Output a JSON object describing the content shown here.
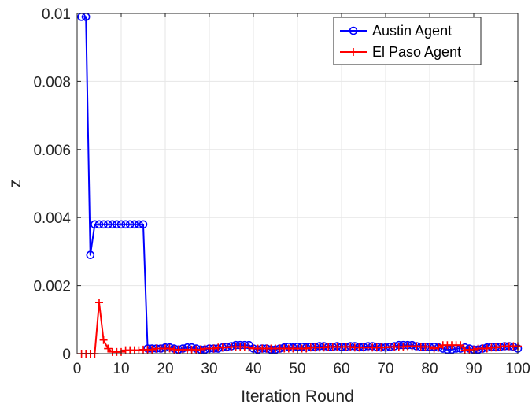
{
  "chart_data": {
    "type": "line",
    "title": "",
    "xlabel": "Iteration Round",
    "ylabel": "z",
    "xlim": [
      0,
      100
    ],
    "ylim": [
      0,
      0.01
    ],
    "x_ticks": [
      0,
      10,
      20,
      30,
      40,
      50,
      60,
      70,
      80,
      90,
      100
    ],
    "y_ticks": [
      0,
      0.002,
      0.004,
      0.006,
      0.008,
      0.01
    ],
    "x_tick_labels": [
      "0",
      "10",
      "20",
      "30",
      "40",
      "50",
      "60",
      "70",
      "80",
      "90",
      "100"
    ],
    "y_tick_labels": [
      "0",
      "0.002",
      "0.004",
      "0.006",
      "0.008",
      "0.01"
    ],
    "grid": true,
    "legend_position": "top-right",
    "x": [
      1,
      2,
      3,
      4,
      5,
      6,
      7,
      8,
      9,
      10,
      11,
      12,
      13,
      14,
      15,
      16,
      17,
      18,
      19,
      20,
      21,
      22,
      23,
      24,
      25,
      26,
      27,
      28,
      29,
      30,
      31,
      32,
      33,
      34,
      35,
      36,
      37,
      38,
      39,
      40,
      41,
      42,
      43,
      44,
      45,
      46,
      47,
      48,
      49,
      50,
      51,
      52,
      53,
      54,
      55,
      56,
      57,
      58,
      59,
      60,
      61,
      62,
      63,
      64,
      65,
      66,
      67,
      68,
      69,
      70,
      71,
      72,
      73,
      74,
      75,
      76,
      77,
      78,
      79,
      80,
      81,
      82,
      83,
      84,
      85,
      86,
      87,
      88,
      89,
      90,
      91,
      92,
      93,
      94,
      95,
      96,
      97,
      98,
      99,
      100
    ],
    "series": [
      {
        "name": "Austin Agent",
        "color": "#0000ff",
        "marker": "circle",
        "values": [
          0.0099,
          0.0099,
          0.0029,
          0.0038,
          0.0038,
          0.0038,
          0.0038,
          0.0038,
          0.0038,
          0.0038,
          0.0038,
          0.0038,
          0.0038,
          0.0038,
          0.0038,
          0.00015,
          0.00015,
          0.00015,
          0.00015,
          0.00018,
          0.00018,
          0.00015,
          0.00012,
          0.00015,
          0.00018,
          0.00018,
          0.00015,
          0.00012,
          0.00012,
          0.00015,
          0.00015,
          0.00015,
          0.00018,
          0.0002,
          0.00022,
          0.00025,
          0.00025,
          0.00025,
          0.00025,
          0.00015,
          0.00012,
          0.00015,
          0.00015,
          0.00012,
          0.00012,
          0.00015,
          0.00018,
          0.0002,
          0.00018,
          0.0002,
          0.0002,
          0.00018,
          0.0002,
          0.0002,
          0.00022,
          0.00022,
          0.0002,
          0.0002,
          0.00022,
          0.0002,
          0.0002,
          0.00022,
          0.00022,
          0.0002,
          0.0002,
          0.00022,
          0.00022,
          0.0002,
          0.00018,
          0.00018,
          0.0002,
          0.00022,
          0.00025,
          0.00025,
          0.00025,
          0.00025,
          0.00022,
          0.0002,
          0.0002,
          0.0002,
          0.0002,
          0.00018,
          0.00015,
          0.00012,
          0.00012,
          0.00015,
          0.00015,
          0.00018,
          0.00015,
          0.00012,
          0.00012,
          0.00015,
          0.00018,
          0.0002,
          0.0002,
          0.0002,
          0.00022,
          0.00022,
          0.0002,
          0.00015
        ]
      },
      {
        "name": "El Paso Agent",
        "color": "#ff0000",
        "marker": "plus",
        "values": [
          0,
          0,
          0,
          0,
          0.0015,
          0.0004,
          0.00015,
          5e-05,
          5e-05,
          5e-05,
          0.0001,
          0.0001,
          0.0001,
          0.0001,
          0.00012,
          0.00012,
          0.00012,
          0.00015,
          0.00015,
          0.00015,
          0.00015,
          0.00012,
          0.00012,
          0.00012,
          0.00012,
          0.00012,
          0.00012,
          0.00012,
          0.00015,
          0.00015,
          0.00015,
          0.00018,
          0.00018,
          0.00018,
          0.0002,
          0.0002,
          0.0002,
          0.0002,
          0.00018,
          0.00015,
          0.00015,
          0.00015,
          0.00015,
          0.00015,
          0.00015,
          0.00015,
          0.00015,
          0.00015,
          0.00015,
          0.00015,
          0.00015,
          0.00015,
          0.00018,
          0.00018,
          0.00018,
          0.00018,
          0.0002,
          0.0002,
          0.0002,
          0.0002,
          0.0002,
          0.0002,
          0.00018,
          0.00018,
          0.00018,
          0.00018,
          0.00018,
          0.00018,
          0.00018,
          0.00018,
          0.0002,
          0.0002,
          0.0002,
          0.0002,
          0.00022,
          0.00022,
          0.00022,
          0.0002,
          0.0002,
          0.0002,
          0.00015,
          0.00018,
          0.00025,
          0.00025,
          0.00025,
          0.00025,
          0.00025,
          0.0001,
          0.00012,
          0.00012,
          0.00015,
          0.00015,
          0.00015,
          0.00018,
          0.00018,
          0.0002,
          0.00022,
          0.00022,
          0.00022,
          0.00022
        ]
      }
    ]
  }
}
